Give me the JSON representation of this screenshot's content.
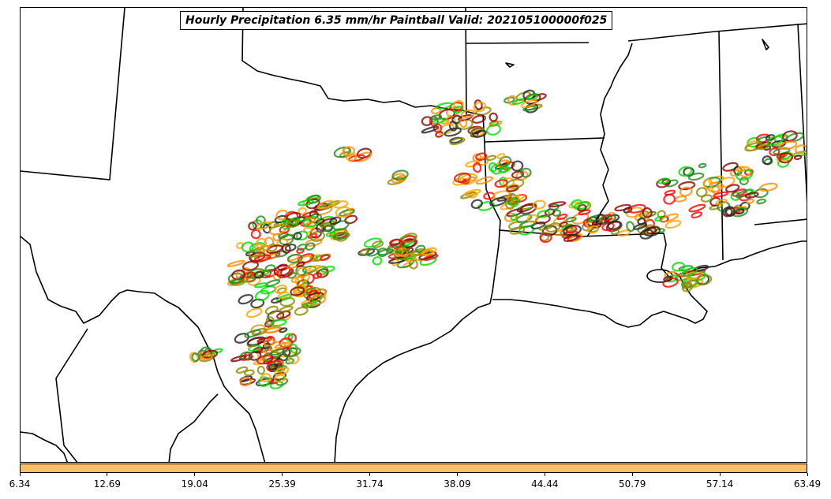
{
  "title": "Hourly Precipitation 6.35 mm/hr Paintball Valid: 202105100000f025",
  "colorbar": {
    "color": "#ffbf66",
    "ticks": [
      "6.34",
      "12.69",
      "19.04",
      "25.39",
      "31.74",
      "38.09",
      "44.44",
      "50.79",
      "57.14",
      "63.49"
    ]
  },
  "paintball_colors": [
    "#228b22",
    "#00dd00",
    "#8b8b00",
    "#ff8c00",
    "#ffa500",
    "#ff0000",
    "#8b0000",
    "#222222"
  ],
  "map": {
    "projection": "Lambert conformal",
    "features": [
      "state borders",
      "coastline",
      "international border"
    ]
  }
}
